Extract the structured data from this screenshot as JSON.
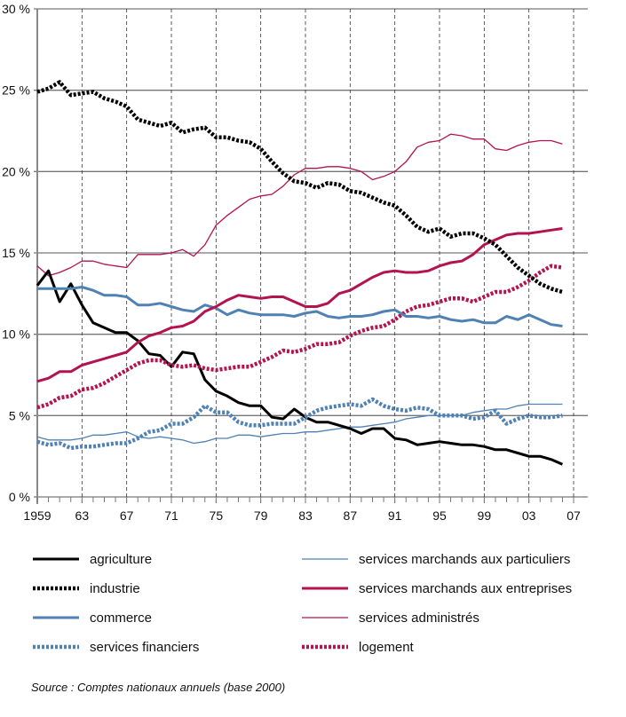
{
  "chart_data": {
    "type": "line",
    "title": "",
    "xlabel": "",
    "ylabel": "",
    "xlim": [
      1959,
      2007
    ],
    "ylim": [
      0,
      30
    ],
    "y_ticks": [
      "0 %",
      "5 %",
      "10 %",
      "15 %",
      "20 %",
      "25 %",
      "30 %"
    ],
    "y_tick_values": [
      0,
      5,
      10,
      15,
      20,
      25,
      30
    ],
    "x_ticks": [
      "1959",
      "63",
      "67",
      "71",
      "75",
      "79",
      "83",
      "87",
      "91",
      "95",
      "99",
      "03",
      "07"
    ],
    "x_tick_values": [
      1959,
      1963,
      1967,
      1971,
      1975,
      1979,
      1983,
      1987,
      1991,
      1995,
      1999,
      2003,
      2007
    ],
    "grid": true,
    "legend_placement": "bottom",
    "x_start": 1959,
    "series": [
      {
        "name": "agriculture",
        "color": "#000000",
        "style": "solid-thick",
        "values": [
          13,
          13.9,
          12,
          13.1,
          11.8,
          10.7,
          10.4,
          10.1,
          10.1,
          9.6,
          8.8,
          8.7,
          8.0,
          8.9,
          8.8,
          7.2,
          6.5,
          6.2,
          5.8,
          5.6,
          5.6,
          4.9,
          4.8,
          5.4,
          4.9,
          4.6,
          4.6,
          4.4,
          4.2,
          3.9,
          4.2,
          4.2,
          3.6,
          3.5,
          3.2,
          3.3,
          3.4,
          3.3,
          3.2,
          3.2,
          3.1,
          2.9,
          2.9,
          2.7,
          2.5,
          2.5,
          2.3,
          2.0
        ]
      },
      {
        "name": "industrie",
        "color": "#000000",
        "style": "dotted",
        "values": [
          24.9,
          25.1,
          25.5,
          24.7,
          24.8,
          24.9,
          24.5,
          24.3,
          24.0,
          23.2,
          23.0,
          22.8,
          23.0,
          22.4,
          22.6,
          22.7,
          22.1,
          22.1,
          21.9,
          21.8,
          21.4,
          20.6,
          19.9,
          19.4,
          19.3,
          19.0,
          19.3,
          19.2,
          18.8,
          18.7,
          18.4,
          18.1,
          17.9,
          17.3,
          16.6,
          16.3,
          16.5,
          16.0,
          16.2,
          16.2,
          15.9,
          15.5,
          14.8,
          14.1,
          13.6,
          13.1,
          12.8,
          12.6
        ]
      },
      {
        "name": "commerce",
        "color": "#4f81b4",
        "style": "solid-thick",
        "values": [
          12.8,
          12.8,
          12.8,
          12.8,
          12.9,
          12.7,
          12.4,
          12.4,
          12.3,
          11.8,
          11.8,
          11.9,
          11.7,
          11.5,
          11.4,
          11.8,
          11.6,
          11.2,
          11.5,
          11.3,
          11.2,
          11.2,
          11.2,
          11.1,
          11.3,
          11.4,
          11.1,
          11.0,
          11.1,
          11.1,
          11.2,
          11.4,
          11.5,
          11.1,
          11.1,
          11.0,
          11.1,
          10.9,
          10.8,
          10.9,
          10.7,
          10.7,
          11.1,
          10.9,
          11.2,
          10.9,
          10.6,
          10.5
        ]
      },
      {
        "name": "services financiers",
        "color": "#4f81b4",
        "style": "dotted",
        "values": [
          3.4,
          3.2,
          3.3,
          3.0,
          3.1,
          3.1,
          3.2,
          3.3,
          3.3,
          3.6,
          4.0,
          4.1,
          4.5,
          4.5,
          4.9,
          5.6,
          5.2,
          5.2,
          4.6,
          4.4,
          4.4,
          4.5,
          4.5,
          4.5,
          4.9,
          5.3,
          5.5,
          5.6,
          5.7,
          5.6,
          6.0,
          5.6,
          5.4,
          5.3,
          5.5,
          5.4,
          5.0,
          5.0,
          5.0,
          4.8,
          4.9,
          5.3,
          4.5,
          4.8,
          5.0,
          4.9,
          4.9,
          5.0
        ]
      },
      {
        "name": "services marchands aux particuliers",
        "color": "#4f81b4",
        "style": "solid-thin",
        "values": [
          3.7,
          3.5,
          3.5,
          3.5,
          3.6,
          3.8,
          3.8,
          3.9,
          4.0,
          3.7,
          3.6,
          3.7,
          3.6,
          3.5,
          3.3,
          3.4,
          3.6,
          3.6,
          3.8,
          3.8,
          3.7,
          3.8,
          3.9,
          3.9,
          4.0,
          4.0,
          4.1,
          4.2,
          4.3,
          4.3,
          4.4,
          4.5,
          4.6,
          4.8,
          4.9,
          5.0,
          5.0,
          5.0,
          5.0,
          5.2,
          5.3,
          5.4,
          5.4,
          5.6,
          5.7,
          5.7,
          5.7,
          5.7
        ]
      },
      {
        "name": "services marchands aux entreprises",
        "color": "#b3134f",
        "style": "solid-thick",
        "values": [
          7.1,
          7.3,
          7.7,
          7.7,
          8.1,
          8.3,
          8.5,
          8.7,
          8.9,
          9.5,
          9.9,
          10.1,
          10.4,
          10.5,
          10.8,
          11.4,
          11.7,
          12.1,
          12.4,
          12.3,
          12.2,
          12.3,
          12.3,
          12.0,
          11.7,
          11.7,
          11.9,
          12.5,
          12.7,
          13.1,
          13.5,
          13.8,
          13.9,
          13.8,
          13.8,
          13.9,
          14.2,
          14.4,
          14.5,
          14.9,
          15.5,
          15.8,
          16.1,
          16.2,
          16.2,
          16.3,
          16.4,
          16.5
        ]
      },
      {
        "name": "services administrés",
        "color": "#b3134f",
        "style": "solid-thin",
        "values": [
          14.2,
          13.6,
          13.8,
          14.1,
          14.5,
          14.5,
          14.3,
          14.2,
          14.1,
          14.9,
          14.9,
          14.9,
          15.0,
          15.2,
          14.8,
          15.5,
          16.7,
          17.3,
          17.8,
          18.3,
          18.5,
          18.6,
          19.1,
          19.8,
          20.2,
          20.2,
          20.3,
          20.3,
          20.2,
          20.0,
          19.5,
          19.7,
          20.0,
          20.6,
          21.5,
          21.8,
          21.9,
          22.3,
          22.2,
          22.0,
          22.0,
          21.4,
          21.3,
          21.6,
          21.8,
          21.9,
          21.9,
          21.7
        ]
      },
      {
        "name": "logement",
        "color": "#b3134f",
        "style": "dotted",
        "values": [
          5.5,
          5.7,
          6.1,
          6.2,
          6.6,
          6.7,
          7.0,
          7.4,
          7.8,
          8.2,
          8.4,
          8.4,
          8.1,
          8.0,
          8.1,
          7.9,
          7.8,
          7.9,
          8.0,
          8.0,
          8.3,
          8.6,
          9.0,
          8.9,
          9.1,
          9.4,
          9.4,
          9.5,
          9.9,
          10.2,
          10.4,
          10.5,
          10.9,
          11.4,
          11.7,
          11.8,
          12.0,
          12.2,
          12.2,
          12.0,
          12.3,
          12.6,
          12.6,
          12.9,
          13.3,
          13.8,
          14.2,
          14.1
        ]
      }
    ],
    "legend": [
      "agriculture",
      "industrie",
      "commerce",
      "services financiers",
      "services marchands aux particuliers",
      "services marchands aux entreprises",
      "services administrés",
      "logement"
    ],
    "source": "Source : Comptes nationaux annuels (base 2000)"
  }
}
